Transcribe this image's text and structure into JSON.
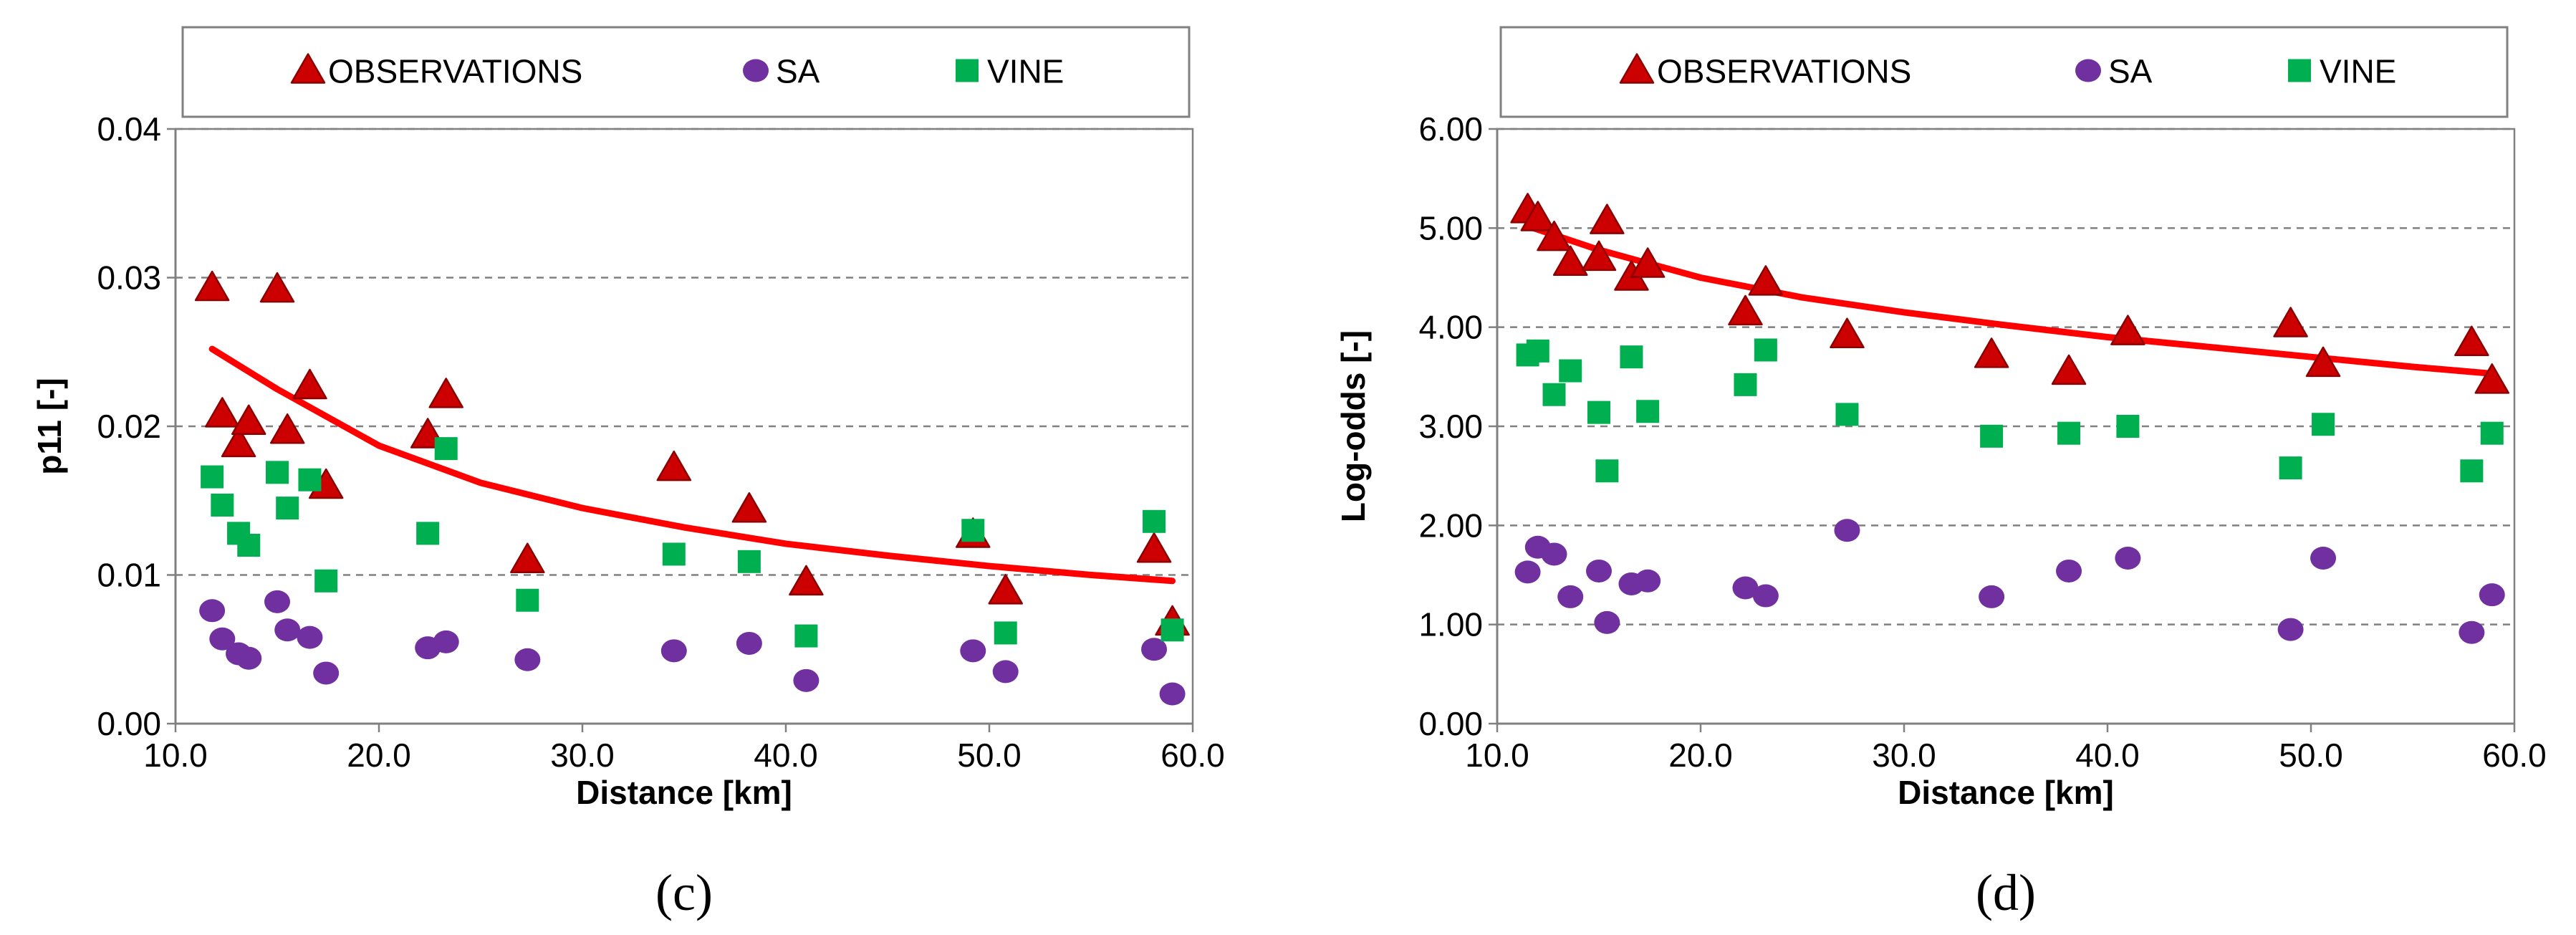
{
  "colors": {
    "observations": "#cc0000",
    "observations_edge": "#8b0000",
    "sa": "#7030a0",
    "vine": "#00b050",
    "fit": "#ff0000",
    "grid": "#808080",
    "frame": "#808080"
  },
  "chart_data": [
    {
      "type": "scatter",
      "panel_label": "(c)",
      "xlabel": "Distance [km]",
      "ylabel": "p11 [-]",
      "xlim": [
        10.0,
        60.0
      ],
      "ylim": [
        0.0,
        0.04
      ],
      "x_ticks": [
        "10.0",
        "20.0",
        "30.0",
        "40.0",
        "50.0",
        "60.0"
      ],
      "y_ticks": [
        "0.00",
        "0.01",
        "0.02",
        "0.03",
        "0.04"
      ],
      "x_tick_values": [
        10,
        20,
        30,
        40,
        50,
        60
      ],
      "y_tick_values": [
        0,
        0.01,
        0.02,
        0.03,
        0.04
      ],
      "grid": "horizontal-dashed",
      "legend": [
        "OBSERVATIONS",
        "SA",
        "VINE"
      ],
      "legend_position": "top",
      "fit": {
        "name": "OBSERVATIONS trend",
        "x": [
          11.8,
          15,
          20,
          25,
          30,
          35,
          40,
          45,
          50,
          55,
          59
        ],
        "y": [
          0.0252,
          0.0225,
          0.0187,
          0.0162,
          0.0145,
          0.0132,
          0.0121,
          0.0113,
          0.0106,
          0.01,
          0.0096
        ]
      },
      "series": [
        {
          "name": "OBSERVATIONS",
          "marker": "triangle",
          "x": [
            11.8,
            12.3,
            13.1,
            13.6,
            15.0,
            15.5,
            16.6,
            17.4,
            22.4,
            23.3,
            27.3,
            34.5,
            38.2,
            41.0,
            49.2,
            50.8,
            58.1,
            59.0
          ],
          "y": [
            0.0293,
            0.0208,
            0.0188,
            0.0203,
            0.0292,
            0.0197,
            0.0227,
            0.016,
            0.0194,
            0.0221,
            0.011,
            0.0172,
            0.0144,
            0.0095,
            0.0127,
            0.0089,
            0.0117,
            0.0068
          ]
        },
        {
          "name": "SA",
          "marker": "circle",
          "x": [
            11.8,
            12.3,
            13.1,
            13.6,
            15.0,
            15.5,
            16.6,
            17.4,
            22.4,
            23.3,
            27.3,
            34.5,
            38.2,
            41.0,
            49.2,
            50.8,
            58.1,
            59.0
          ],
          "y": [
            0.0076,
            0.0057,
            0.0047,
            0.0044,
            0.0082,
            0.0063,
            0.0058,
            0.0034,
            0.0051,
            0.0055,
            0.0043,
            0.0049,
            0.0054,
            0.0029,
            0.0049,
            0.0035,
            0.005,
            0.002
          ]
        },
        {
          "name": "VINE",
          "marker": "square",
          "x": [
            11.8,
            12.3,
            13.1,
            13.6,
            15.0,
            15.5,
            16.6,
            17.4,
            22.4,
            23.3,
            27.3,
            34.5,
            38.2,
            41.0,
            49.2,
            50.8,
            58.1,
            59.0
          ],
          "y": [
            0.0166,
            0.0147,
            0.0128,
            0.012,
            0.0169,
            0.0145,
            0.0164,
            0.0096,
            0.0128,
            0.0185,
            0.0083,
            0.0114,
            0.0109,
            0.0059,
            0.013,
            0.0061,
            0.0136,
            0.0063
          ]
        }
      ]
    },
    {
      "type": "scatter",
      "panel_label": "(d)",
      "xlabel": "Distance [km]",
      "ylabel": "Log-odds [-]",
      "xlim": [
        10.0,
        60.0
      ],
      "ylim": [
        0.0,
        6.0
      ],
      "x_ticks": [
        "10.0",
        "20.0",
        "30.0",
        "40.0",
        "50.0",
        "60.0"
      ],
      "y_ticks": [
        "0.00",
        "1.00",
        "2.00",
        "3.00",
        "4.00",
        "5.00",
        "6.00"
      ],
      "x_tick_values": [
        10,
        20,
        30,
        40,
        50,
        60
      ],
      "y_tick_values": [
        0,
        1,
        2,
        3,
        4,
        5,
        6
      ],
      "grid": "horizontal-dashed",
      "legend": [
        "OBSERVATIONS",
        "SA",
        "VINE"
      ],
      "legend_position": "top",
      "fit": {
        "name": "OBSERVATIONS trend",
        "x": [
          11.5,
          15,
          20,
          25,
          30,
          35,
          40,
          45,
          50,
          55,
          59
        ],
        "y": [
          5.02,
          4.78,
          4.5,
          4.3,
          4.15,
          4.02,
          3.9,
          3.8,
          3.7,
          3.6,
          3.53
        ]
      },
      "series": [
        {
          "name": "OBSERVATIONS",
          "marker": "triangle",
          "x": [
            11.5,
            12.0,
            12.8,
            13.6,
            15.0,
            15.4,
            16.6,
            17.4,
            22.2,
            23.2,
            27.2,
            34.3,
            38.1,
            41.0,
            49.0,
            50.6,
            57.9,
            58.9
          ],
          "y": [
            5.18,
            5.1,
            4.9,
            4.65,
            4.7,
            5.07,
            4.5,
            4.63,
            4.15,
            4.45,
            3.92,
            3.72,
            3.55,
            3.95,
            4.03,
            3.63,
            3.84,
            3.46
          ]
        },
        {
          "name": "SA",
          "marker": "circle",
          "x": [
            11.5,
            12.0,
            12.8,
            13.6,
            15.0,
            15.4,
            16.6,
            17.4,
            22.2,
            23.2,
            27.2,
            34.3,
            38.1,
            41.0,
            49.0,
            50.6,
            57.9,
            58.9
          ],
          "y": [
            1.53,
            1.78,
            1.71,
            1.28,
            1.54,
            1.02,
            1.41,
            1.44,
            1.37,
            1.29,
            1.95,
            1.28,
            1.54,
            1.67,
            0.95,
            1.67,
            0.92,
            1.3
          ]
        },
        {
          "name": "VINE",
          "marker": "square",
          "x": [
            11.5,
            12.0,
            12.8,
            13.6,
            15.0,
            15.4,
            16.6,
            17.4,
            22.2,
            23.2,
            27.2,
            34.3,
            38.1,
            41.0,
            49.0,
            50.6,
            57.9,
            58.9
          ],
          "y": [
            3.72,
            3.76,
            3.32,
            3.56,
            3.14,
            2.55,
            3.7,
            3.15,
            3.42,
            3.77,
            3.12,
            2.9,
            2.93,
            3.0,
            2.58,
            3.02,
            2.55,
            2.93
          ]
        }
      ]
    }
  ]
}
